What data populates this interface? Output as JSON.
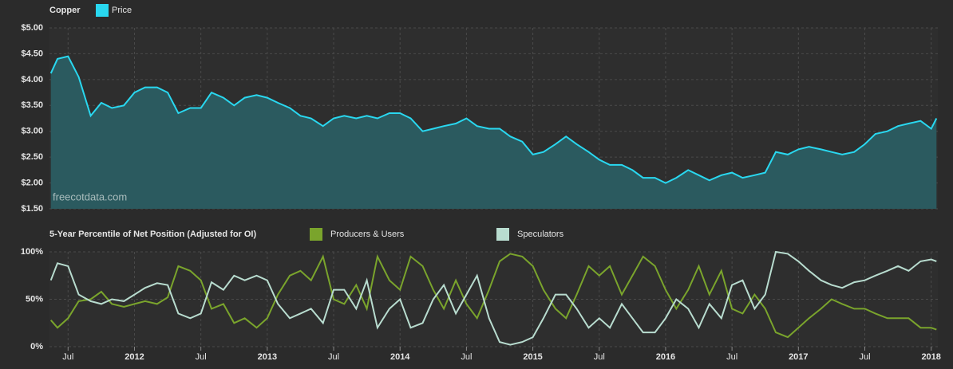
{
  "chart_data": [
    {
      "type": "area",
      "title": "Copper",
      "annotation": "freecotdata.com",
      "x": [
        2011.37,
        2011.42,
        2011.5,
        2011.58,
        2011.67,
        2011.75,
        2011.83,
        2011.92,
        2012.0,
        2012.08,
        2012.17,
        2012.25,
        2012.33,
        2012.42,
        2012.5,
        2012.58,
        2012.67,
        2012.75,
        2012.83,
        2012.92,
        2013.0,
        2013.08,
        2013.17,
        2013.25,
        2013.33,
        2013.42,
        2013.5,
        2013.58,
        2013.67,
        2013.75,
        2013.83,
        2013.92,
        2014.0,
        2014.08,
        2014.17,
        2014.25,
        2014.33,
        2014.42,
        2014.5,
        2014.58,
        2014.67,
        2014.75,
        2014.83,
        2014.92,
        2015.0,
        2015.08,
        2015.17,
        2015.25,
        2015.33,
        2015.42,
        2015.5,
        2015.58,
        2015.67,
        2015.75,
        2015.83,
        2015.92,
        2016.0,
        2016.08,
        2016.17,
        2016.25,
        2016.33,
        2016.42,
        2016.5,
        2016.58,
        2016.67,
        2016.75,
        2016.83,
        2016.92,
        2017.0,
        2017.08,
        2017.17,
        2017.25,
        2017.33,
        2017.42,
        2017.5,
        2017.58,
        2017.67,
        2017.75,
        2017.83,
        2017.92,
        2018.0,
        2018.04
      ],
      "series": [
        {
          "name": "Price",
          "color": "#29d8f0",
          "fill": "#2b5a5f",
          "values": [
            4.12,
            4.4,
            4.45,
            4.05,
            3.3,
            3.55,
            3.45,
            3.5,
            3.75,
            3.85,
            3.85,
            3.75,
            3.35,
            3.45,
            3.45,
            3.75,
            3.65,
            3.5,
            3.65,
            3.7,
            3.65,
            3.55,
            3.45,
            3.3,
            3.25,
            3.1,
            3.25,
            3.3,
            3.25,
            3.3,
            3.25,
            3.35,
            3.35,
            3.25,
            3.0,
            3.05,
            3.1,
            3.15,
            3.25,
            3.1,
            3.05,
            3.05,
            2.9,
            2.8,
            2.55,
            2.6,
            2.75,
            2.9,
            2.75,
            2.6,
            2.45,
            2.35,
            2.35,
            2.25,
            2.1,
            2.1,
            2.0,
            2.1,
            2.25,
            2.15,
            2.05,
            2.15,
            2.2,
            2.1,
            2.15,
            2.2,
            2.6,
            2.55,
            2.65,
            2.7,
            2.65,
            2.6,
            2.55,
            2.6,
            2.75,
            2.95,
            3.0,
            3.1,
            3.15,
            3.2,
            3.05,
            3.25
          ]
        }
      ],
      "xlim": [
        2011.36,
        2018.05
      ],
      "ylim": [
        1.5,
        5.0
      ],
      "yticks": [
        {
          "value": 1.5,
          "label": "$1.50"
        },
        {
          "value": 2.0,
          "label": "$2.00"
        },
        {
          "value": 2.5,
          "label": "$2.50"
        },
        {
          "value": 3.0,
          "label": "$3.00"
        },
        {
          "value": 3.5,
          "label": "$3.50"
        },
        {
          "value": 4.0,
          "label": "$4.00"
        },
        {
          "value": 4.5,
          "label": "$4.50"
        },
        {
          "value": 5.0,
          "label": "$5.00"
        }
      ],
      "grid": true
    },
    {
      "type": "line",
      "title": "5-Year Percentile of Net Position (Adjusted for OI)",
      "x": [
        2011.37,
        2011.42,
        2011.5,
        2011.58,
        2011.67,
        2011.75,
        2011.83,
        2011.92,
        2012.0,
        2012.08,
        2012.17,
        2012.25,
        2012.33,
        2012.42,
        2012.5,
        2012.58,
        2012.67,
        2012.75,
        2012.83,
        2012.92,
        2013.0,
        2013.08,
        2013.17,
        2013.25,
        2013.33,
        2013.42,
        2013.5,
        2013.58,
        2013.67,
        2013.75,
        2013.83,
        2013.92,
        2014.0,
        2014.08,
        2014.17,
        2014.25,
        2014.33,
        2014.42,
        2014.5,
        2014.58,
        2014.67,
        2014.75,
        2014.83,
        2014.92,
        2015.0,
        2015.08,
        2015.17,
        2015.25,
        2015.33,
        2015.42,
        2015.5,
        2015.58,
        2015.67,
        2015.75,
        2015.83,
        2015.92,
        2016.0,
        2016.08,
        2016.17,
        2016.25,
        2016.33,
        2016.42,
        2016.5,
        2016.58,
        2016.67,
        2016.75,
        2016.83,
        2016.92,
        2017.0,
        2017.08,
        2017.17,
        2017.25,
        2017.33,
        2017.42,
        2017.5,
        2017.58,
        2017.67,
        2017.75,
        2017.83,
        2017.92,
        2018.0,
        2018.04
      ],
      "series": [
        {
          "name": "Producers & Users",
          "color": "#7aa42c",
          "values": [
            28,
            20,
            30,
            48,
            50,
            58,
            45,
            42,
            45,
            48,
            45,
            52,
            85,
            80,
            70,
            40,
            45,
            25,
            30,
            20,
            30,
            55,
            75,
            80,
            70,
            95,
            50,
            45,
            65,
            40,
            95,
            70,
            60,
            95,
            85,
            60,
            40,
            70,
            45,
            30,
            60,
            90,
            98,
            95,
            85,
            60,
            40,
            30,
            55,
            85,
            75,
            85,
            55,
            75,
            95,
            85,
            60,
            40,
            60,
            85,
            55,
            80,
            40,
            35,
            55,
            40,
            15,
            10,
            20,
            30,
            40,
            50,
            45,
            40,
            40,
            35,
            30,
            30,
            30,
            20,
            20,
            18
          ]
        },
        {
          "name": "Speculators",
          "color": "#b8dccf",
          "values": [
            70,
            88,
            85,
            55,
            48,
            45,
            50,
            48,
            55,
            62,
            67,
            65,
            35,
            30,
            35,
            68,
            60,
            75,
            70,
            75,
            70,
            45,
            30,
            35,
            40,
            25,
            60,
            60,
            40,
            70,
            20,
            40,
            50,
            20,
            25,
            50,
            65,
            35,
            55,
            75,
            30,
            5,
            2,
            5,
            10,
            30,
            55,
            55,
            40,
            20,
            30,
            20,
            45,
            30,
            15,
            15,
            30,
            50,
            40,
            20,
            45,
            30,
            65,
            70,
            40,
            55,
            100,
            98,
            90,
            80,
            70,
            65,
            62,
            68,
            70,
            75,
            80,
            85,
            80,
            90,
            92,
            90
          ]
        }
      ],
      "xlim": [
        2011.36,
        2018.05
      ],
      "ylim": [
        0,
        100
      ],
      "yticks": [
        {
          "value": 0,
          "label": "0%"
        },
        {
          "value": 50,
          "label": "50%"
        },
        {
          "value": 100,
          "label": "100%"
        }
      ],
      "xticks": [
        {
          "value": 2011.5,
          "label": "Jul"
        },
        2012,
        {
          "value": 2012.5,
          "label": "Jul"
        },
        2013,
        {
          "value": 2013.5,
          "label": "Jul"
        },
        2014,
        {
          "value": 2014.5,
          "label": "Jul"
        },
        2015,
        {
          "value": 2015.5,
          "label": "Jul"
        },
        2016,
        {
          "value": 2016.5,
          "label": "Jul"
        },
        2017,
        {
          "value": 2017.5,
          "label": "Jul"
        },
        2018
      ],
      "grid": true
    }
  ]
}
